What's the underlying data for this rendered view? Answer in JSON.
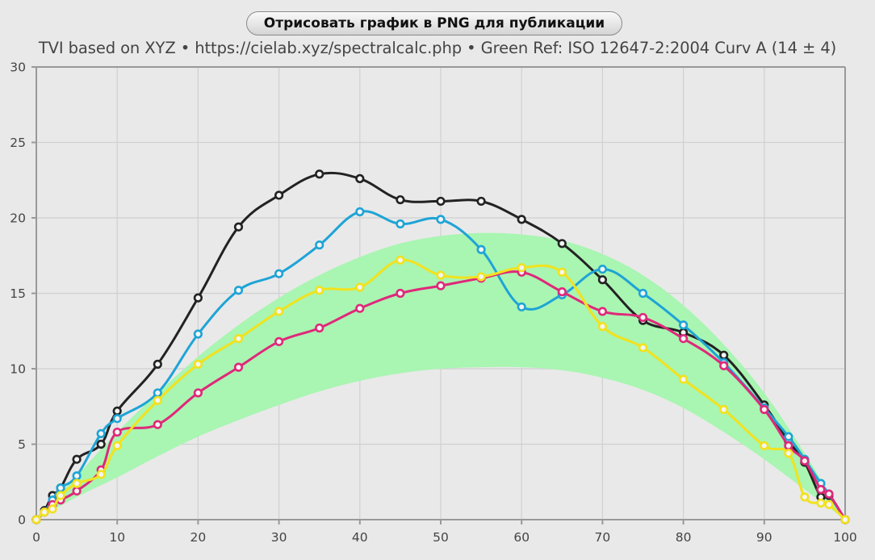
{
  "toolbar": {
    "export_label": "Отрисовать график в PNG для публикации"
  },
  "header": {
    "subtitle": "TVI based on XYZ  •  https://cielab.xyz/spectralcalc.php  •  Green Ref: ISO 12647-2:2004 Curv A (14 ± 4)"
  },
  "colors": {
    "background": "#e9e9e9",
    "grid": "#d0d0d0",
    "axis": "#999999",
    "band": "#a9f5b2",
    "black": "#222222",
    "cyan": "#1ea4d6",
    "magenta": "#e0287a",
    "yellow": "#f2e21d"
  },
  "chart_data": {
    "type": "line",
    "xlim": [
      0,
      100
    ],
    "ylim": [
      0,
      30
    ],
    "x_ticks": [
      0,
      10,
      20,
      30,
      40,
      50,
      60,
      70,
      80,
      90,
      100
    ],
    "y_ticks": [
      0,
      5,
      10,
      15,
      20,
      25,
      30
    ],
    "grid": true,
    "reference_band": {
      "x": [
        0,
        5,
        10,
        15,
        20,
        25,
        30,
        35,
        40,
        45,
        50,
        55,
        60,
        65,
        70,
        75,
        80,
        85,
        90,
        95,
        100
      ],
      "lower": [
        0,
        1.5,
        2.8,
        4.2,
        5.5,
        6.6,
        7.6,
        8.5,
        9.2,
        9.7,
        10.0,
        10.1,
        10.1,
        9.9,
        9.4,
        8.6,
        7.4,
        5.8,
        4.0,
        2.0,
        0
      ],
      "upper": [
        0,
        2.9,
        5.8,
        8.4,
        10.8,
        12.9,
        14.7,
        16.2,
        17.4,
        18.3,
        18.8,
        19.0,
        18.9,
        18.5,
        17.6,
        16.2,
        14.2,
        11.6,
        8.4,
        4.4,
        0
      ]
    },
    "series": [
      {
        "color": "black",
        "x": [
          0,
          1,
          2,
          3,
          5,
          8,
          10,
          15,
          20,
          25,
          30,
          35,
          40,
          45,
          50,
          55,
          60,
          65,
          70,
          75,
          80,
          85,
          90,
          93,
          95,
          97,
          98,
          100
        ],
        "y": [
          0,
          0.6,
          1.6,
          2.1,
          4.0,
          5.0,
          7.2,
          10.3,
          14.7,
          19.4,
          21.5,
          22.9,
          22.6,
          21.2,
          21.1,
          21.1,
          19.9,
          18.3,
          15.9,
          13.2,
          12.4,
          10.9,
          7.6,
          5.2,
          3.8,
          1.5,
          1.6,
          0
        ]
      },
      {
        "color": "cyan",
        "x": [
          0,
          1,
          2,
          3,
          5,
          8,
          10,
          15,
          20,
          25,
          30,
          35,
          40,
          45,
          50,
          55,
          60,
          65,
          70,
          75,
          80,
          85,
          90,
          93,
          95,
          97,
          98,
          100
        ],
        "y": [
          0,
          0.5,
          1.3,
          2.1,
          2.9,
          5.7,
          6.7,
          8.4,
          12.3,
          15.2,
          16.3,
          18.2,
          20.4,
          19.6,
          19.9,
          17.9,
          14.1,
          14.9,
          16.6,
          15.0,
          12.9,
          10.4,
          7.4,
          5.5,
          4.0,
          2.4,
          1.7,
          0
        ]
      },
      {
        "color": "magenta",
        "x": [
          0,
          1,
          2,
          3,
          5,
          8,
          10,
          15,
          20,
          25,
          30,
          35,
          40,
          45,
          50,
          55,
          60,
          65,
          70,
          75,
          80,
          85,
          90,
          93,
          95,
          97,
          98,
          100
        ],
        "y": [
          0,
          0.5,
          1.0,
          1.3,
          1.9,
          3.3,
          5.8,
          6.3,
          8.4,
          10.1,
          11.8,
          12.7,
          14.0,
          15.0,
          15.5,
          16.0,
          16.4,
          15.1,
          13.8,
          13.4,
          12.0,
          10.2,
          7.3,
          4.9,
          3.9,
          2.0,
          1.7,
          0
        ]
      },
      {
        "color": "yellow",
        "x": [
          0,
          1,
          2,
          3,
          5,
          8,
          10,
          15,
          20,
          25,
          30,
          35,
          40,
          45,
          50,
          55,
          60,
          65,
          70,
          75,
          80,
          85,
          90,
          93,
          95,
          97,
          98,
          100
        ],
        "y": [
          0,
          0.5,
          0.7,
          1.6,
          2.4,
          3.0,
          4.9,
          7.9,
          10.3,
          12.0,
          13.8,
          15.2,
          15.4,
          17.2,
          16.2,
          16.1,
          16.7,
          16.4,
          12.8,
          11.4,
          9.3,
          7.3,
          4.9,
          4.4,
          1.5,
          1.1,
          1.0,
          0
        ]
      }
    ]
  }
}
